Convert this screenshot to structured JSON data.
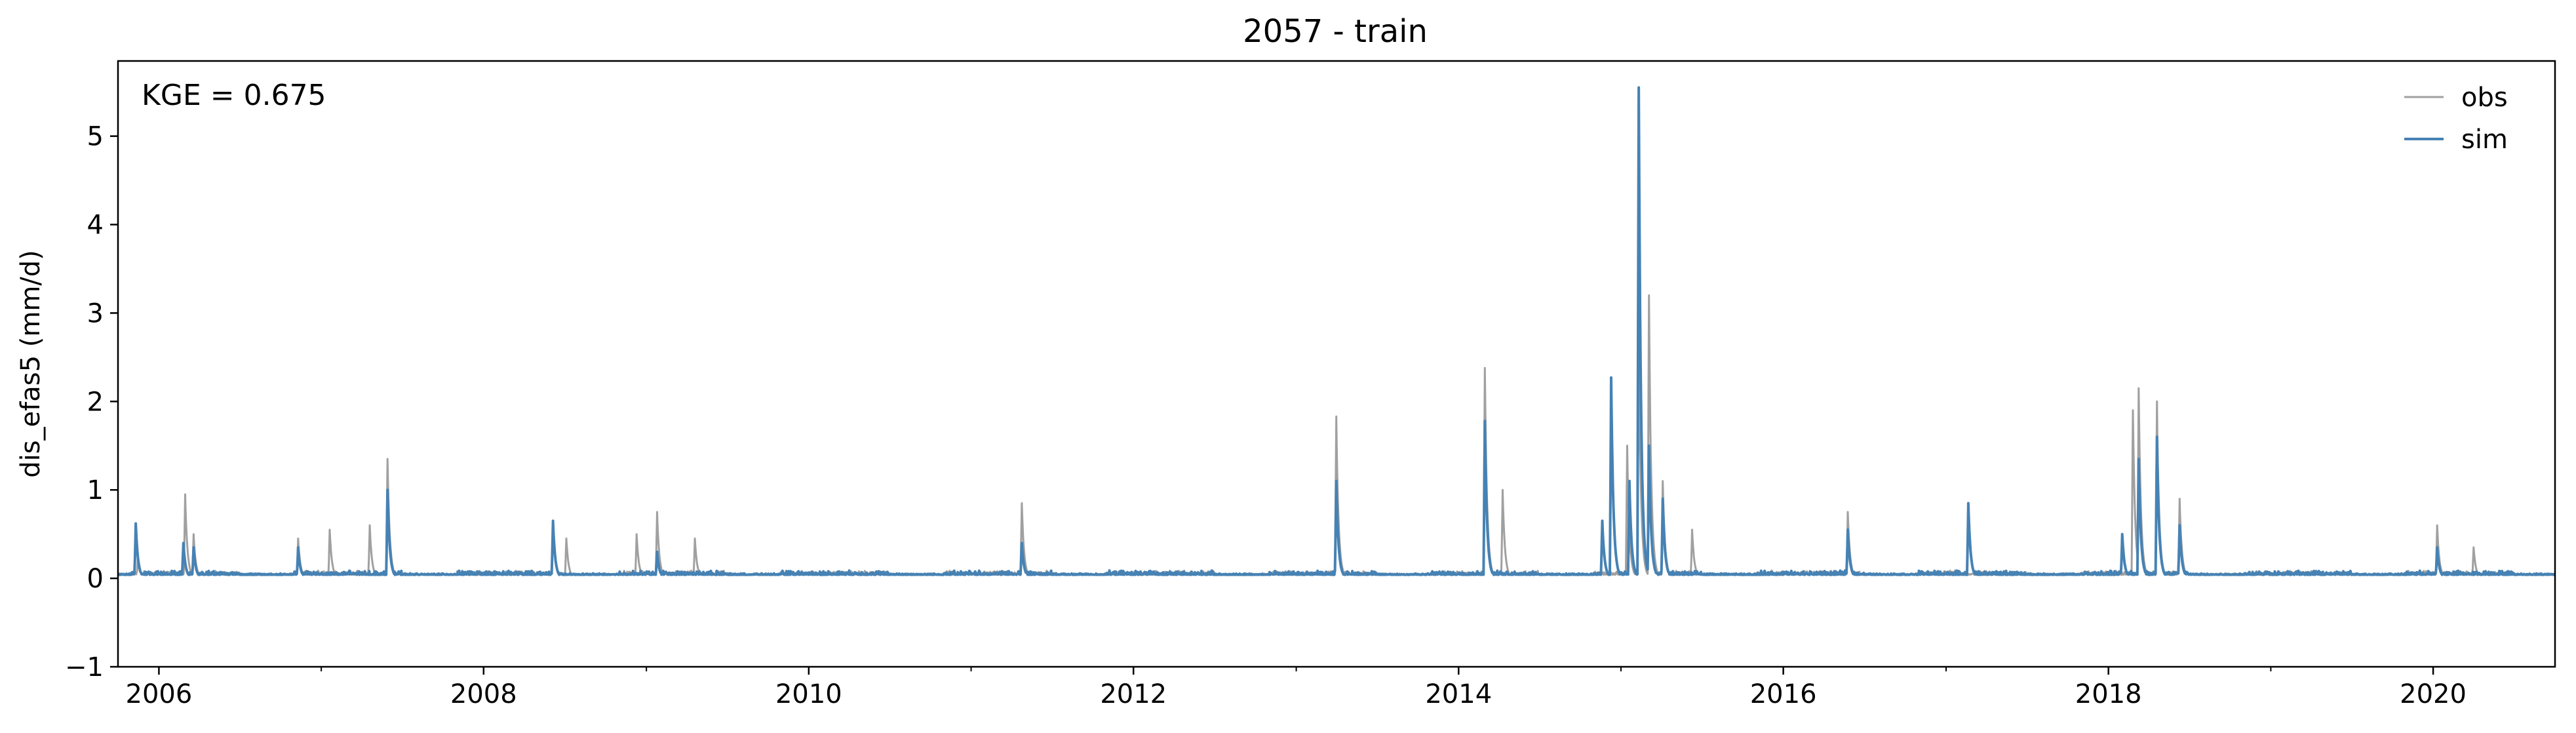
{
  "chart_data": {
    "type": "line",
    "title": "2057 - train",
    "ylabel": "dis_efas5 (mm/d)",
    "xlabel": "",
    "annotation": "KGE = 0.675",
    "xlim": [
      "2005-10-01",
      "2020-10-01"
    ],
    "ylim": [
      -1,
      5.85
    ],
    "x_ticks": [
      "2006",
      "2008",
      "2010",
      "2012",
      "2014",
      "2016",
      "2018",
      "2020"
    ],
    "y_ticks": [
      "−1",
      "0",
      "1",
      "2",
      "3",
      "4",
      "5"
    ],
    "grid": false,
    "legend_position": "top-right",
    "base_level": 0.04,
    "series": [
      {
        "name": "obs",
        "color": "#a0a0a0",
        "peaks": [
          [
            "2005-11-15",
            0.25
          ],
          [
            "2006-03-01",
            0.95
          ],
          [
            "2006-03-20",
            0.5
          ],
          [
            "2006-11-10",
            0.45
          ],
          [
            "2007-01-20",
            0.55
          ],
          [
            "2007-04-20",
            0.6
          ],
          [
            "2007-05-30",
            1.35
          ],
          [
            "2008-06-05",
            0.65
          ],
          [
            "2008-07-05",
            0.45
          ],
          [
            "2008-12-10",
            0.5
          ],
          [
            "2009-01-25",
            0.75
          ],
          [
            "2009-04-20",
            0.45
          ],
          [
            "2011-04-25",
            0.85
          ],
          [
            "2013-04-01",
            1.83
          ],
          [
            "2014-03-01",
            2.38
          ],
          [
            "2014-04-10",
            1.0
          ],
          [
            "2015-01-15",
            1.5
          ],
          [
            "2015-02-10",
            2.7
          ],
          [
            "2015-03-05",
            3.2
          ],
          [
            "2015-04-05",
            1.1
          ],
          [
            "2015-06-10",
            0.55
          ],
          [
            "2016-05-25",
            0.75
          ],
          [
            "2018-02-25",
            1.9
          ],
          [
            "2018-03-10",
            2.15
          ],
          [
            "2018-04-20",
            2.0
          ],
          [
            "2018-06-10",
            0.9
          ],
          [
            "2020-01-10",
            0.6
          ],
          [
            "2020-04-01",
            0.35
          ]
        ]
      },
      {
        "name": "sim",
        "color": "#4682b4",
        "peaks": [
          [
            "2005-11-10",
            0.62
          ],
          [
            "2006-02-25",
            0.4
          ],
          [
            "2006-03-20",
            0.35
          ],
          [
            "2006-11-10",
            0.35
          ],
          [
            "2007-05-30",
            1.0
          ],
          [
            "2008-06-05",
            0.65
          ],
          [
            "2009-01-25",
            0.3
          ],
          [
            "2011-04-25",
            0.4
          ],
          [
            "2013-04-01",
            1.1
          ],
          [
            "2014-03-01",
            1.78
          ],
          [
            "2014-11-20",
            0.65
          ],
          [
            "2014-12-10",
            2.27
          ],
          [
            "2015-01-20",
            1.1
          ],
          [
            "2015-02-10",
            5.55
          ],
          [
            "2015-03-05",
            1.5
          ],
          [
            "2015-04-05",
            0.9
          ],
          [
            "2016-05-25",
            0.55
          ],
          [
            "2017-02-20",
            0.85
          ],
          [
            "2018-02-01",
            0.5
          ],
          [
            "2018-03-10",
            1.35
          ],
          [
            "2018-04-20",
            1.6
          ],
          [
            "2018-06-10",
            0.6
          ],
          [
            "2020-01-10",
            0.35
          ]
        ]
      }
    ]
  }
}
